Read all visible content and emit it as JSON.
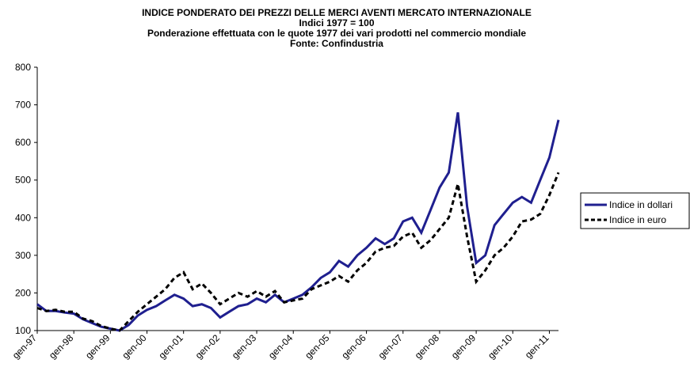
{
  "chart_data": {
    "type": "line",
    "title": "INDICE PONDERATO DEI PREZZI DELLE MERCI AVENTI MERCATO INTERNAZIONALE",
    "subtitle": [
      "Indici 1977 = 100",
      "Ponderazione effettuata con le quote 1977 dei vari prodotti nel commercio mondiale",
      "Fonte: Confindustria"
    ],
    "categories": [
      "gen-97",
      null,
      null,
      null,
      "gen-98",
      null,
      null,
      null,
      "gen-99",
      null,
      null,
      null,
      "gen-00",
      null,
      null,
      null,
      "gen-01",
      null,
      null,
      null,
      "gen-02",
      null,
      null,
      null,
      "gen-03",
      null,
      null,
      null,
      "gen-04",
      null,
      null,
      null,
      "gen-05",
      null,
      null,
      null,
      "gen-06",
      null,
      null,
      null,
      "gen-07",
      null,
      null,
      null,
      "gen-08",
      null,
      null,
      null,
      "gen-09",
      null,
      null,
      null,
      "gen-10",
      null,
      null,
      null,
      "gen-11",
      null
    ],
    "series": [
      {
        "name": "Indice in dollari",
        "color": "#1f1f8f",
        "dash": false,
        "values": [
          170,
          152,
          152,
          148,
          145,
          130,
          120,
          110,
          105,
          100,
          115,
          140,
          155,
          165,
          180,
          195,
          185,
          165,
          170,
          160,
          135,
          150,
          165,
          170,
          185,
          175,
          195,
          175,
          185,
          195,
          215,
          240,
          255,
          285,
          270,
          300,
          320,
          345,
          330,
          345,
          390,
          400,
          360,
          420,
          480,
          520,
          680,
          430,
          280,
          300,
          380,
          410,
          440,
          455,
          440,
          500,
          560,
          660
        ]
      },
      {
        "name": "Indice in euro",
        "color": "#000000",
        "dash": true,
        "values": [
          160,
          152,
          155,
          150,
          150,
          132,
          125,
          112,
          105,
          100,
          125,
          150,
          170,
          190,
          210,
          240,
          255,
          210,
          225,
          200,
          170,
          185,
          200,
          190,
          205,
          190,
          205,
          175,
          180,
          185,
          210,
          220,
          230,
          245,
          230,
          260,
          280,
          310,
          320,
          325,
          350,
          360,
          320,
          340,
          370,
          400,
          490,
          350,
          230,
          260,
          300,
          320,
          350,
          390,
          395,
          410,
          460,
          520
        ]
      }
    ],
    "ylim": [
      100,
      800
    ],
    "yticks": [
      100,
      200,
      300,
      400,
      500,
      600,
      700,
      800
    ],
    "legend": "right"
  }
}
